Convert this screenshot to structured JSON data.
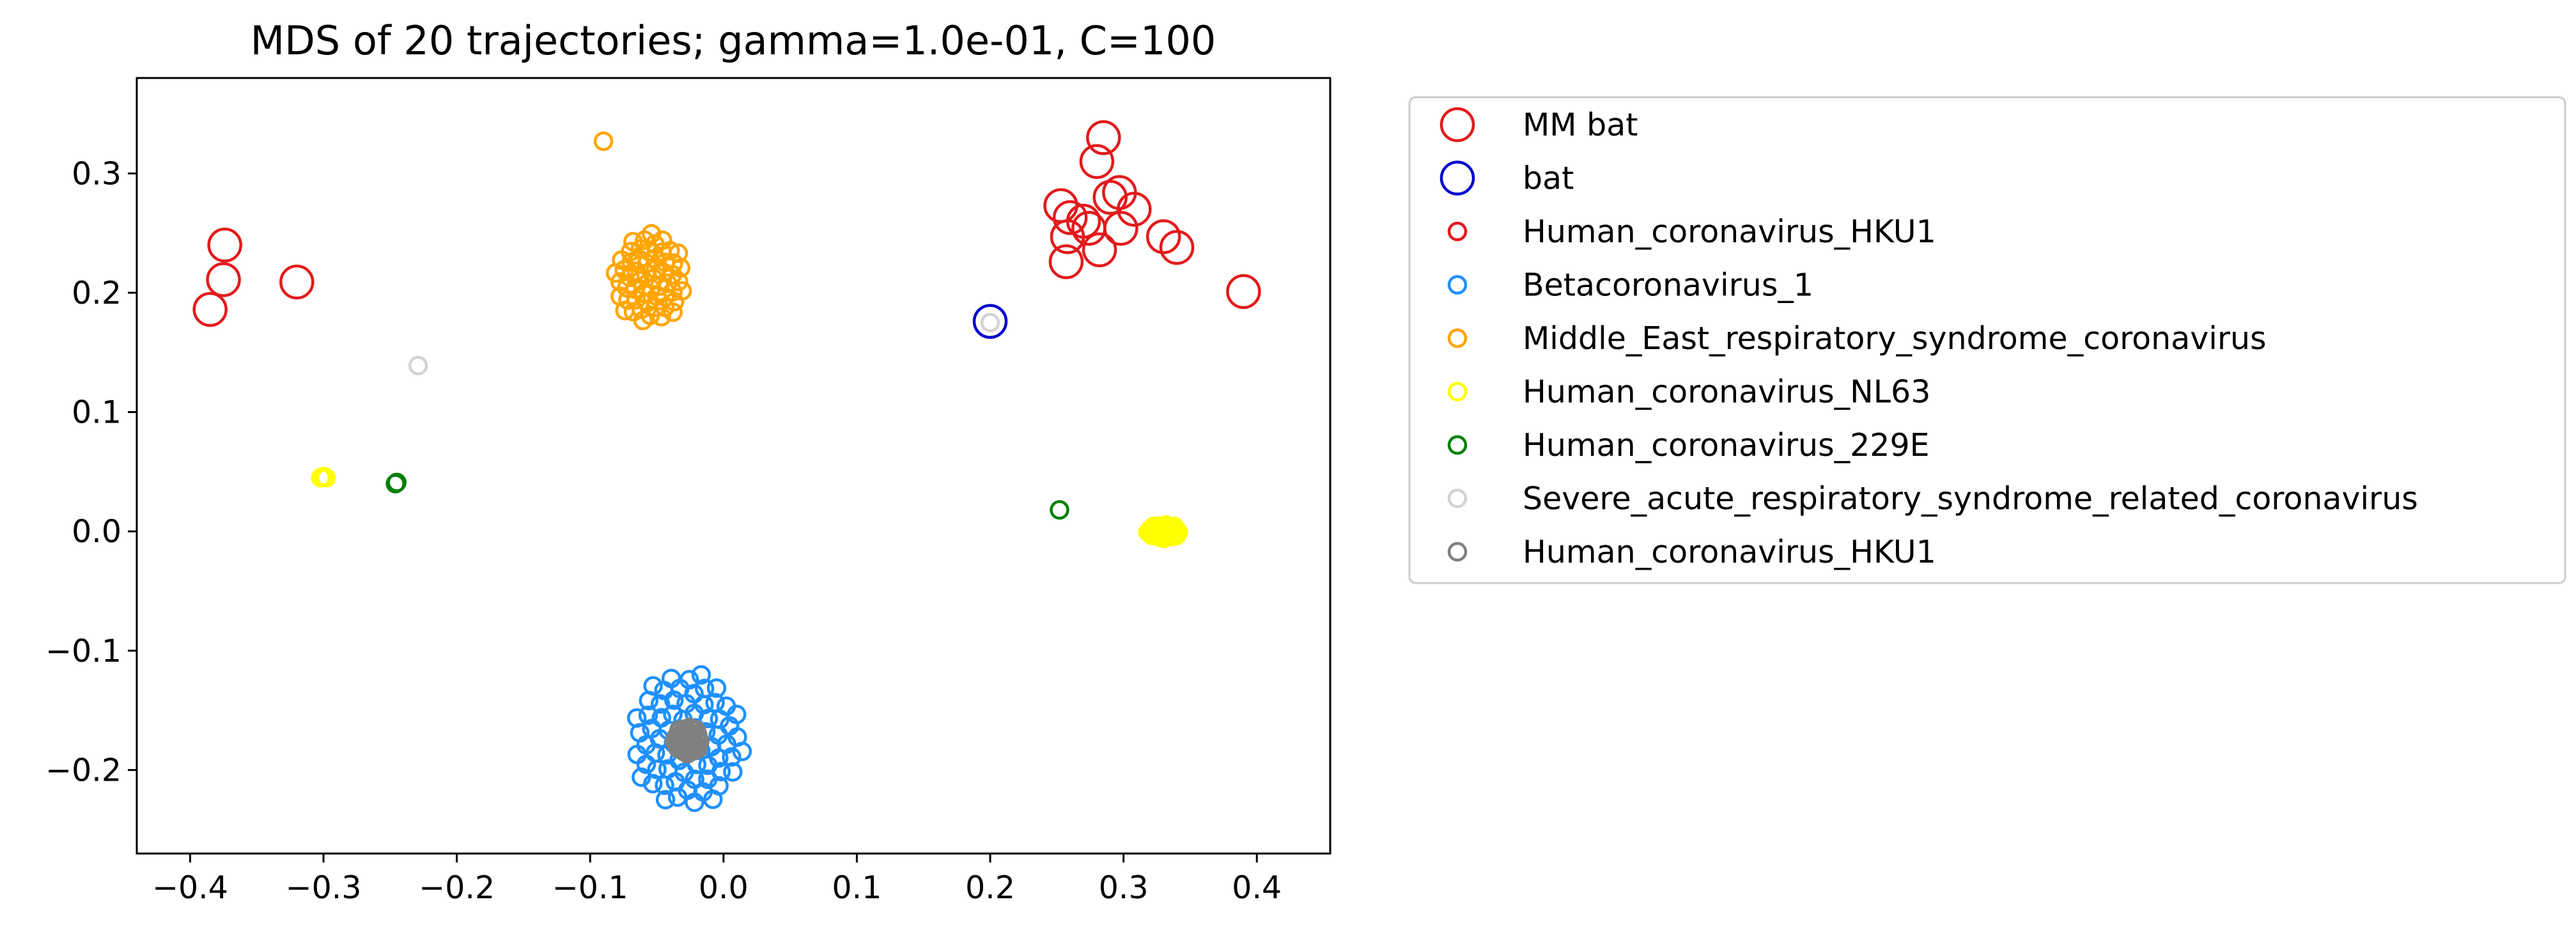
{
  "chart_data": {
    "type": "scatter",
    "title": "MDS of 20 trajectories; gamma=1.0e-01, C=100",
    "xlabel": "",
    "ylabel": "",
    "xlim": [
      -0.44,
      0.455
    ],
    "ylim": [
      -0.27,
      0.38
    ],
    "xticks": [
      -0.4,
      -0.3,
      -0.2,
      -0.1,
      0.0,
      0.1,
      0.2,
      0.3,
      0.4
    ],
    "xtick_labels": [
      "−0.4",
      "−0.3",
      "−0.2",
      "−0.1",
      "0.0",
      "0.1",
      "0.2",
      "0.3",
      "0.4"
    ],
    "yticks": [
      -0.2,
      -0.1,
      0.0,
      0.1,
      0.2,
      0.3
    ],
    "ytick_labels": [
      "−0.2",
      "−0.1",
      "0.0",
      "0.1",
      "0.2",
      "0.3"
    ],
    "grid": false,
    "legend_position": "outside-right-top",
    "series": [
      {
        "name": "MM bat",
        "color": "#e31a1c",
        "marker": "large-circle",
        "points": [
          [
            -0.385,
            0.186
          ],
          [
            -0.375,
            0.211
          ],
          [
            -0.374,
            0.24
          ],
          [
            -0.32,
            0.209
          ],
          [
            0.253,
            0.273
          ],
          [
            0.285,
            0.33
          ],
          [
            0.28,
            0.31
          ],
          [
            0.29,
            0.28
          ],
          [
            0.297,
            0.284
          ],
          [
            0.26,
            0.263
          ],
          [
            0.27,
            0.26
          ],
          [
            0.258,
            0.247
          ],
          [
            0.274,
            0.254
          ],
          [
            0.308,
            0.27
          ],
          [
            0.298,
            0.254
          ],
          [
            0.282,
            0.236
          ],
          [
            0.257,
            0.226
          ],
          [
            0.33,
            0.247
          ],
          [
            0.34,
            0.238
          ],
          [
            0.39,
            0.201
          ]
        ]
      },
      {
        "name": "bat",
        "color": "#0000cc",
        "marker": "large-circle",
        "points": [
          [
            0.2,
            0.176
          ]
        ]
      },
      {
        "name": "Human_coronavirus_HKU1",
        "color": "#e31a1c",
        "marker": "small-circle",
        "points": []
      },
      {
        "name": "Betacoronavirus_1",
        "color": "#1e90ff",
        "marker": "small-circle",
        "cluster": {
          "cx": -0.027,
          "cy": -0.175,
          "rx": 0.042,
          "ry": 0.058,
          "count": 70
        }
      },
      {
        "name": "Middle_East_respiratory_syndrome_coronavirus",
        "color": "#ffa500",
        "marker": "small-circle",
        "points": [
          [
            -0.09,
            0.327
          ]
        ],
        "cluster": {
          "cx": -0.055,
          "cy": 0.212,
          "rx": 0.027,
          "ry": 0.038,
          "count": 55
        }
      },
      {
        "name": "Human_coronavirus_NL63",
        "color": "#ffff00",
        "marker": "small-circle",
        "points": [
          [
            -0.302,
            0.045
          ],
          [
            -0.3,
            0.046
          ],
          [
            -0.298,
            0.045
          ]
        ],
        "cluster": {
          "cx": 0.33,
          "cy": 0.0,
          "rx": 0.012,
          "ry": 0.006,
          "count": 40
        }
      },
      {
        "name": "Human_coronavirus_229E",
        "color": "#008000",
        "marker": "small-circle",
        "points": [
          [
            -0.246,
            0.04
          ],
          [
            -0.245,
            0.041
          ],
          [
            0.252,
            0.018
          ]
        ]
      },
      {
        "name": "Severe_acute_respiratory_syndrome_related_coronavirus",
        "color": "#d3d3d3",
        "marker": "small-circle",
        "points": [
          [
            -0.229,
            0.139
          ],
          [
            0.2,
            0.175
          ]
        ]
      },
      {
        "name": "Human_coronavirus_HKU1",
        "color": "#808080",
        "marker": "small-circle",
        "cluster": {
          "cx": -0.027,
          "cy": -0.175,
          "rx": 0.01,
          "ry": 0.012,
          "count": 40
        }
      }
    ]
  }
}
